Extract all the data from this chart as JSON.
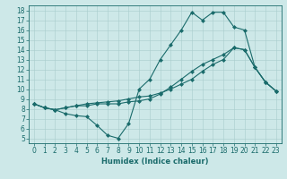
{
  "xlabel": "Humidex (Indice chaleur)",
  "bg_color": "#cde8e8",
  "line_color": "#1a6b6b",
  "grid_color": "#a8cccc",
  "xlim": [
    -0.5,
    23.5
  ],
  "ylim": [
    4.5,
    18.5
  ],
  "xticks": [
    0,
    1,
    2,
    3,
    4,
    5,
    6,
    7,
    8,
    9,
    10,
    11,
    12,
    13,
    14,
    15,
    16,
    17,
    18,
    19,
    20,
    21,
    22,
    23
  ],
  "yticks": [
    5,
    6,
    7,
    8,
    9,
    10,
    11,
    12,
    13,
    14,
    15,
    16,
    17,
    18
  ],
  "line1_x": [
    0,
    1,
    2,
    3,
    4,
    5,
    6,
    7,
    8,
    9,
    10,
    11,
    12,
    13,
    14,
    15,
    16,
    17,
    18,
    19,
    20,
    21,
    22,
    23
  ],
  "line1_y": [
    8.5,
    8.1,
    7.9,
    7.5,
    7.3,
    7.2,
    6.3,
    5.3,
    5.0,
    6.5,
    10.0,
    11.0,
    13.0,
    14.5,
    16.0,
    17.8,
    17.0,
    17.8,
    17.8,
    16.3,
    16.0,
    12.2,
    10.7,
    9.8
  ],
  "line2_x": [
    0,
    1,
    2,
    3,
    4,
    5,
    6,
    7,
    8,
    9,
    10,
    11,
    12,
    13,
    14,
    15,
    16,
    17,
    18,
    19,
    20,
    21,
    22,
    23
  ],
  "line2_y": [
    8.5,
    8.1,
    7.9,
    8.1,
    8.3,
    8.3,
    8.5,
    8.5,
    8.5,
    8.7,
    8.8,
    9.0,
    9.5,
    10.2,
    11.0,
    11.8,
    12.5,
    13.0,
    13.5,
    14.2,
    14.0,
    12.2,
    10.7,
    9.8
  ],
  "line3_x": [
    0,
    1,
    2,
    3,
    4,
    5,
    6,
    7,
    8,
    9,
    10,
    11,
    12,
    13,
    14,
    15,
    16,
    17,
    18,
    19,
    20,
    21,
    22,
    23
  ],
  "line3_y": [
    8.5,
    8.1,
    7.9,
    8.1,
    8.3,
    8.5,
    8.6,
    8.7,
    8.8,
    9.0,
    9.2,
    9.3,
    9.6,
    10.0,
    10.5,
    11.0,
    11.8,
    12.5,
    13.0,
    14.2,
    14.0,
    12.2,
    10.7,
    9.8
  ],
  "marker_size": 2.5,
  "line_width": 0.8,
  "tick_fontsize": 5.5,
  "xlabel_fontsize": 6.0
}
